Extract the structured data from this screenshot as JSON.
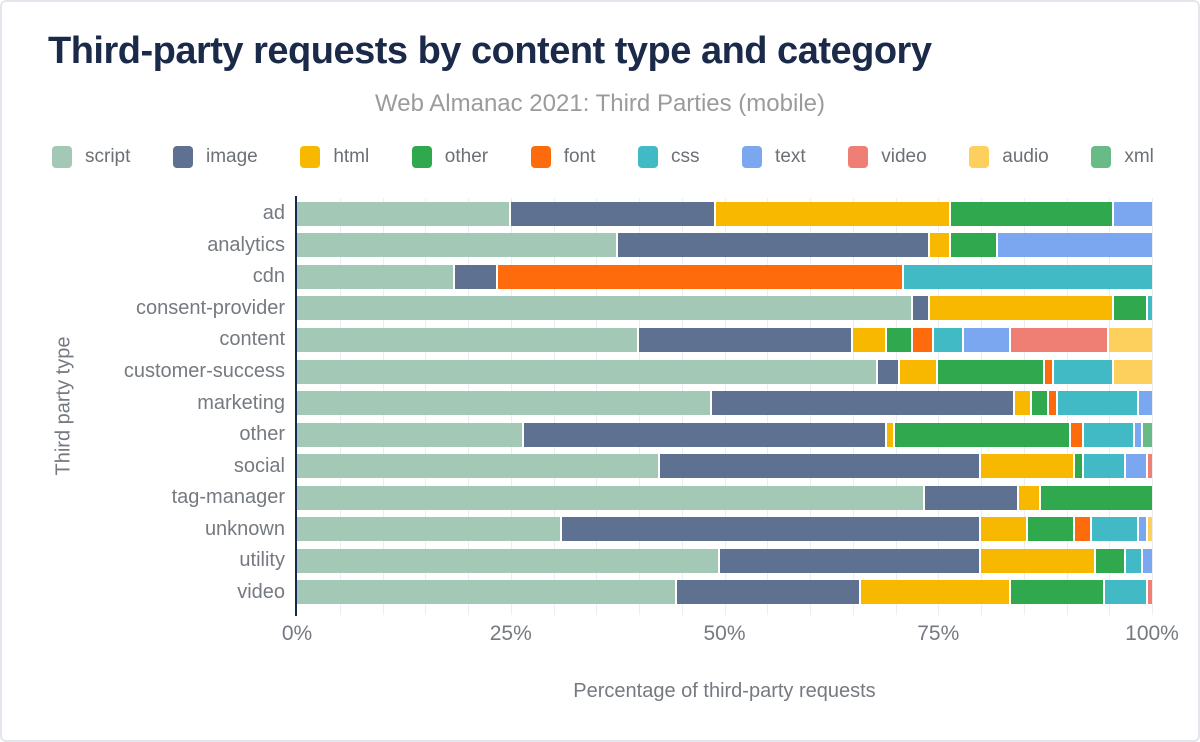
{
  "header": {
    "title": "Third-party requests by content type and category",
    "subtitle": "Web Almanac 2021: Third Parties (mobile)"
  },
  "chart_data": {
    "type": "bar",
    "orientation": "horizontal",
    "stacked": true,
    "title": "Third-party requests by content type and category",
    "subtitle": "Web Almanac 2021: Third Parties (mobile)",
    "xlabel": "Percentage of third-party requests",
    "ylabel": "Third party type",
    "xlim": [
      0,
      100
    ],
    "x_ticks": [
      "0%",
      "25%",
      "50%",
      "75%",
      "100%"
    ],
    "x_tick_values": [
      0,
      25,
      50,
      75,
      100
    ],
    "grid_step": 5,
    "legend_position": "top",
    "categories": [
      "ad",
      "analytics",
      "cdn",
      "consent-provider",
      "content",
      "customer-success",
      "marketing",
      "other",
      "social",
      "tag-manager",
      "unknown",
      "utility",
      "video"
    ],
    "series": [
      {
        "name": "script",
        "color": "#a4c8b6",
        "values": [
          25,
          37.5,
          18.5,
          72,
          40,
          68,
          48.5,
          26.5,
          42.5,
          73.5,
          31,
          49.5,
          44.5
        ]
      },
      {
        "name": "image",
        "color": "#5e7191",
        "values": [
          24,
          36.5,
          5,
          2,
          25,
          2.5,
          35.5,
          42.5,
          37.5,
          11,
          49,
          30.5,
          21.5
        ]
      },
      {
        "name": "html",
        "color": "#f8b800",
        "values": [
          27.5,
          2.5,
          0,
          21.5,
          4,
          4.5,
          2,
          1,
          11,
          2.5,
          5.5,
          13.5,
          17.5
        ]
      },
      {
        "name": "other",
        "color": "#2fa84e",
        "values": [
          19,
          5.5,
          0,
          4,
          3,
          12.5,
          2,
          20.5,
          1,
          13,
          5.5,
          3.5,
          11
        ]
      },
      {
        "name": "font",
        "color": "#fd6b0d",
        "values": [
          0,
          0,
          47.5,
          0,
          2.5,
          1,
          1,
          1.5,
          0,
          0,
          2,
          0,
          0
        ]
      },
      {
        "name": "css",
        "color": "#42bac6",
        "values": [
          0,
          0,
          29,
          0.5,
          3.5,
          7,
          9.5,
          6,
          5,
          0,
          5.5,
          2,
          5
        ]
      },
      {
        "name": "text",
        "color": "#7ba7f0",
        "values": [
          4.5,
          18,
          0,
          0,
          5.5,
          0,
          1.5,
          1,
          2.5,
          0,
          1,
          1,
          0
        ]
      },
      {
        "name": "video",
        "color": "#ef7e75",
        "values": [
          0,
          0,
          0,
          0,
          11.5,
          0,
          0,
          0,
          0.5,
          0,
          0,
          0,
          0.5
        ]
      },
      {
        "name": "audio",
        "color": "#fdd05e",
        "values": [
          0,
          0,
          0,
          0,
          5,
          4.5,
          0,
          0,
          0,
          0,
          0.5,
          0,
          0
        ]
      },
      {
        "name": "xml",
        "color": "#68bb86",
        "values": [
          0,
          0,
          0,
          0,
          0,
          0,
          0,
          1,
          0,
          0,
          0,
          0,
          0
        ]
      }
    ],
    "axis_color": "#152b4e",
    "grid_color": "#ebedf2",
    "label_color": "#757a80"
  }
}
